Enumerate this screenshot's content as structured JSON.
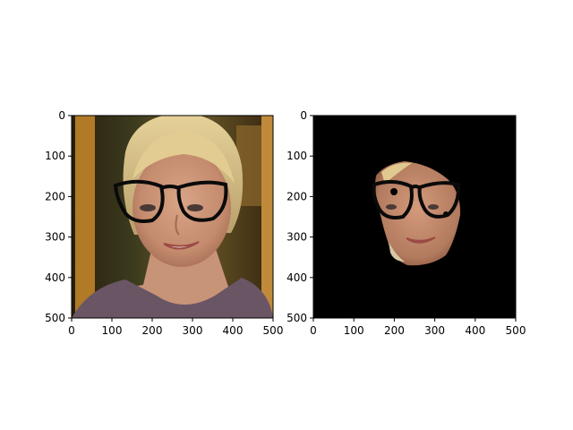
{
  "figure": {
    "background": "#ffffff"
  },
  "chart_data": [
    {
      "type": "image",
      "content": "photo of a smiling blonde woman with drawn-on black eyeglasses",
      "xlim": [
        0,
        500
      ],
      "ylim": [
        500,
        0
      ],
      "xticks": [
        "0",
        "100",
        "200",
        "300",
        "400",
        "500"
      ],
      "yticks": [
        "0",
        "100",
        "200",
        "300",
        "400",
        "500"
      ],
      "grid": false
    },
    {
      "type": "image",
      "content": "segmented face region with drawn-on eyeglasses on a black background",
      "xlim": [
        0,
        500
      ],
      "ylim": [
        500,
        0
      ],
      "xticks": [
        "0",
        "100",
        "200",
        "300",
        "400",
        "500"
      ],
      "yticks": [
        "0",
        "100",
        "200",
        "300",
        "400",
        "500"
      ],
      "grid": false,
      "background": "#000000"
    }
  ]
}
